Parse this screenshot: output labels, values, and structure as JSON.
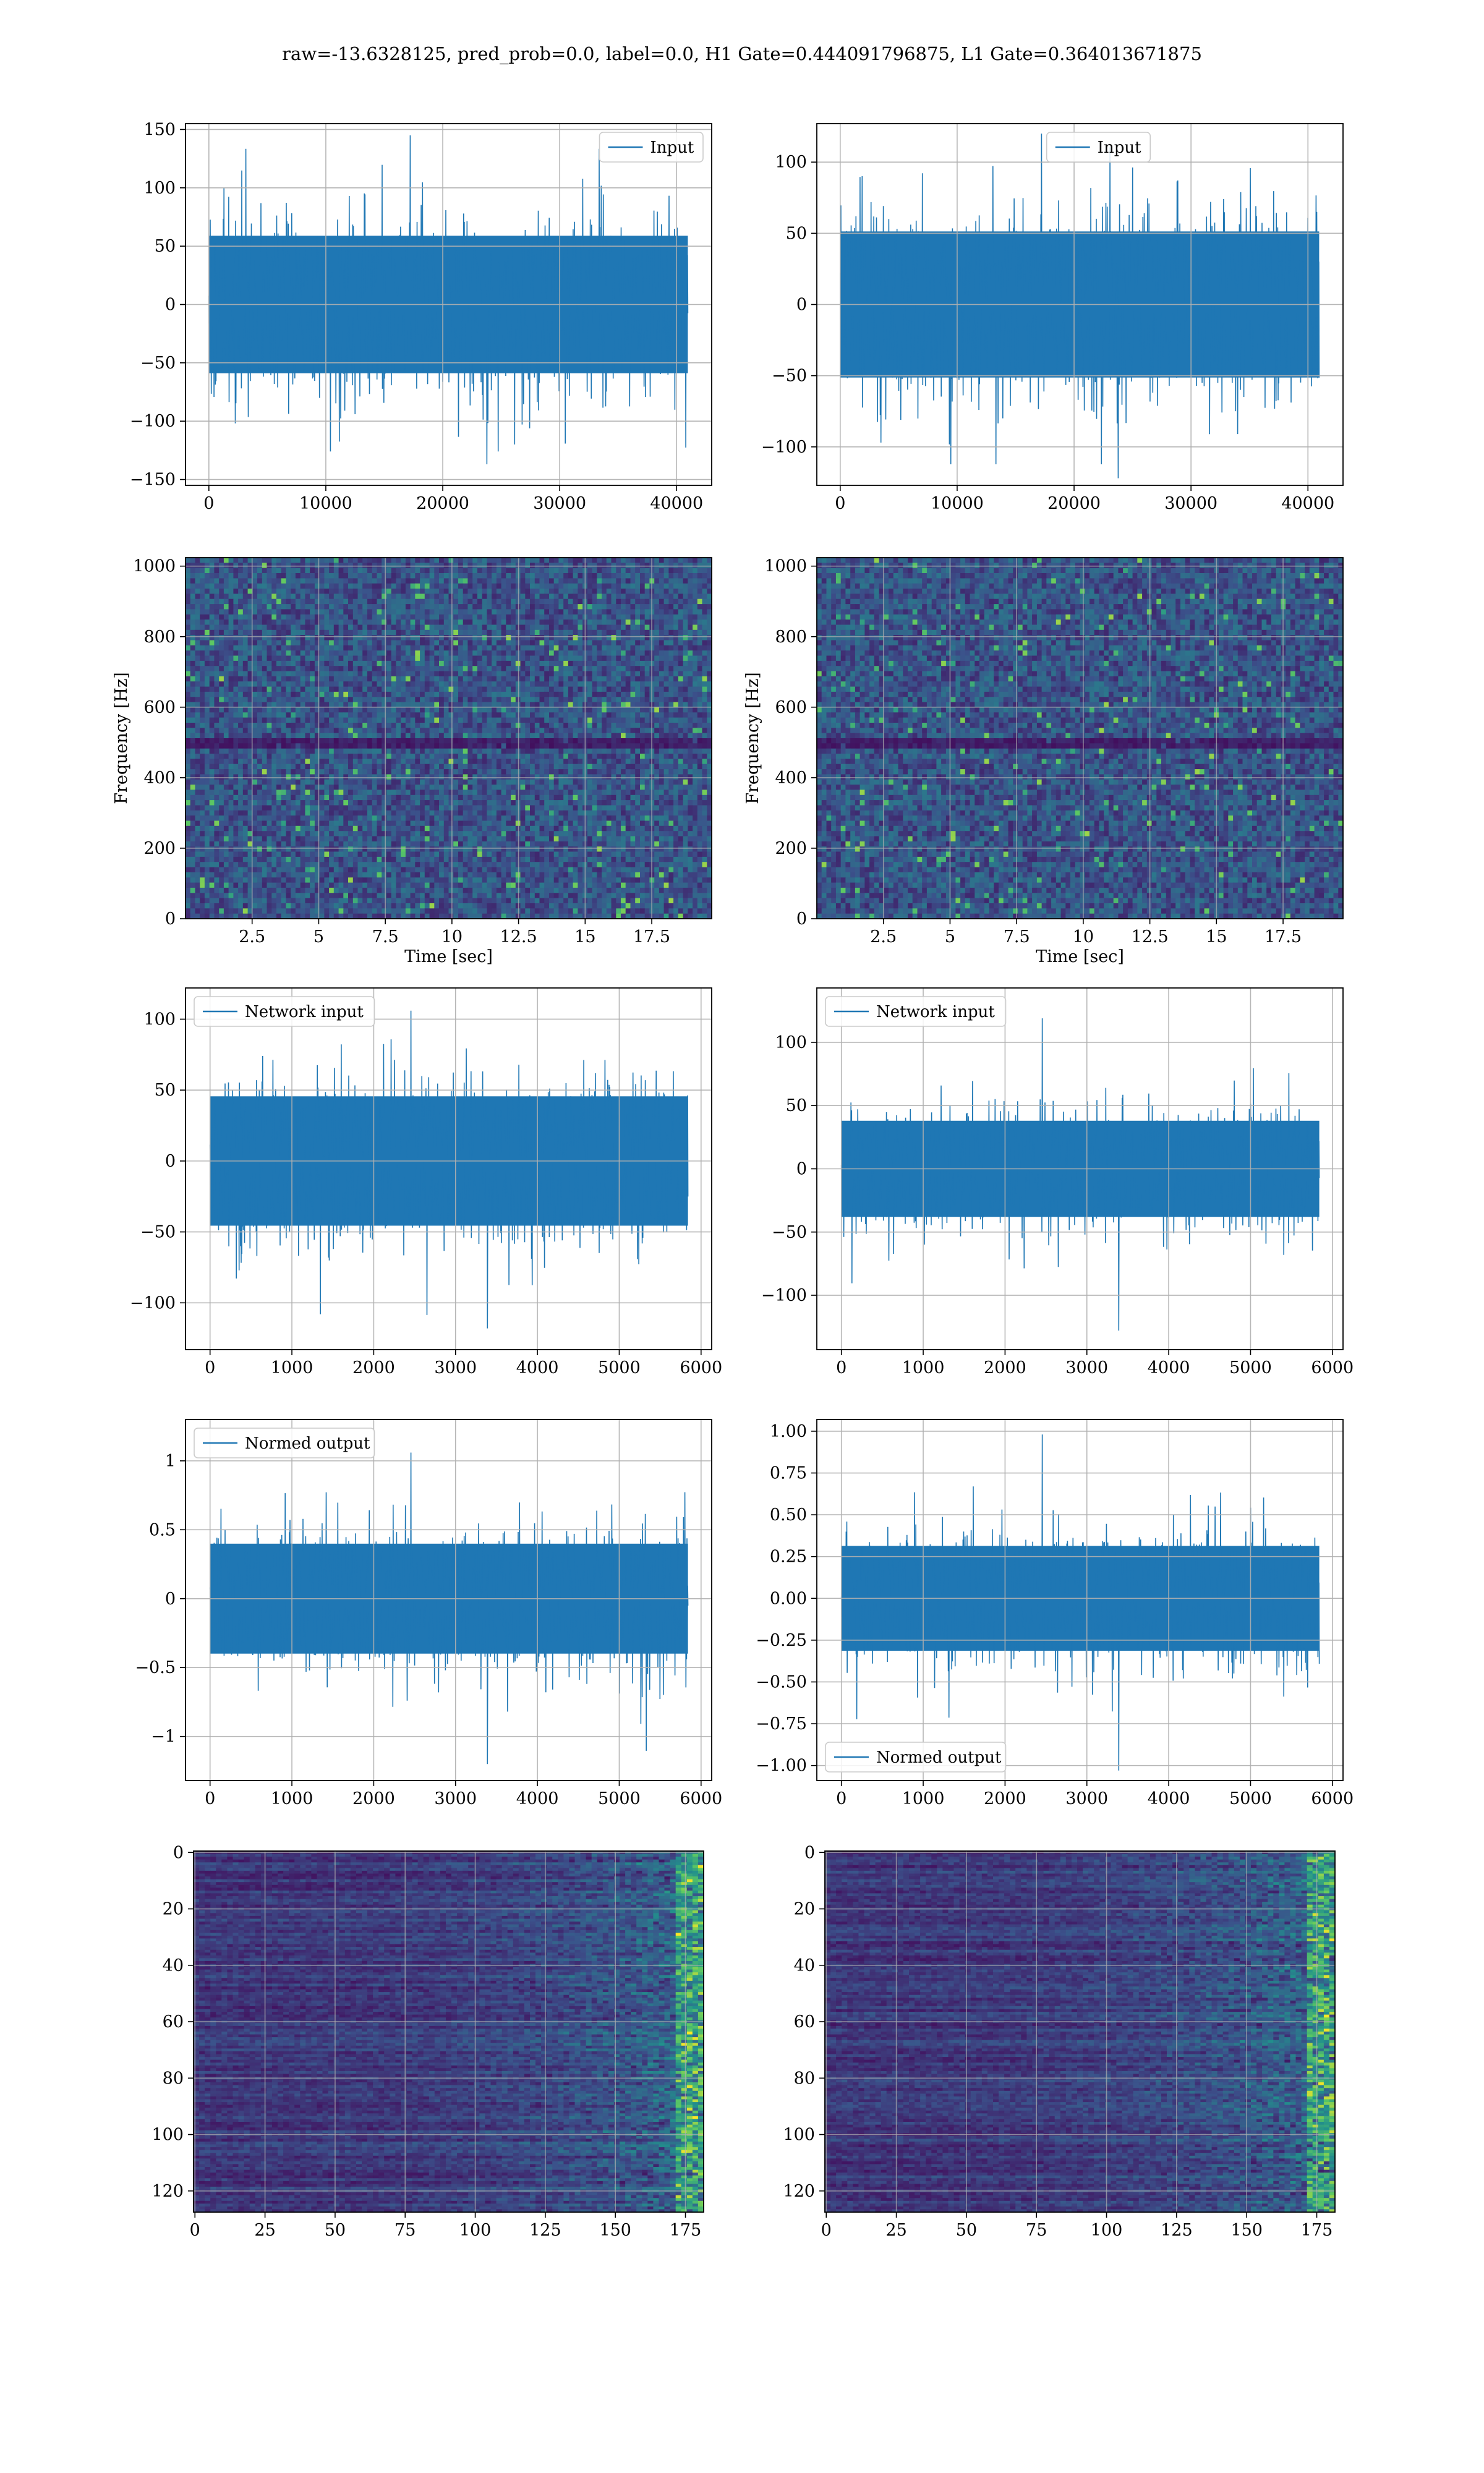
{
  "suptitle": "raw=-13.6328125, pred_prob=0.0, label=0.0, H1 Gate=0.444091796875, L1 Gate=0.364013671875",
  "colors": {
    "line": "#1f77b4",
    "grid": "#b0b0b0",
    "viridis_low": "#440154",
    "viridis_mid": "#21918c",
    "viridis_high": "#fde725"
  },
  "chart_data": [
    {
      "id": "input-h1",
      "type": "line",
      "panel_row": 1,
      "panel_col": 1,
      "series": [
        {
          "name": "Input",
          "noise_amplitude": 62,
          "peak": 145,
          "trough": -137
        }
      ],
      "xlim": [
        -2000,
        43000
      ],
      "ylim": [
        -155,
        155
      ],
      "xticks": [
        0,
        10000,
        20000,
        30000,
        40000
      ],
      "yticks": [
        -150,
        -100,
        -50,
        0,
        50,
        100,
        150
      ],
      "xlabel": "",
      "ylabel": "",
      "legend": "upper right",
      "grid": true,
      "n_samples": 40960
    },
    {
      "id": "input-l1",
      "type": "line",
      "panel_row": 1,
      "panel_col": 2,
      "series": [
        {
          "name": "Input",
          "noise_amplitude": 54,
          "peak": 120,
          "trough": -122
        }
      ],
      "xlim": [
        -2000,
        43000
      ],
      "ylim": [
        -127,
        127
      ],
      "xticks": [
        0,
        10000,
        20000,
        30000,
        40000
      ],
      "yticks": [
        -100,
        -50,
        0,
        50,
        100
      ],
      "xlabel": "",
      "ylabel": "",
      "legend": "upper center",
      "grid": true,
      "n_samples": 40960
    },
    {
      "id": "spectrogram-h1",
      "type": "heatmap",
      "panel_row": 2,
      "panel_col": 1,
      "xlim": [
        0,
        19.75
      ],
      "ylim": [
        0,
        1024
      ],
      "xticks": [
        2.5,
        5.0,
        7.5,
        10.0,
        12.5,
        15.0,
        17.5
      ],
      "yticks": [
        0,
        200,
        400,
        600,
        800,
        1000
      ],
      "xlabel": "Time [sec]",
      "ylabel": "Frequency [Hz]",
      "grid": true,
      "colormap": "viridis",
      "dark_band_hz": 500
    },
    {
      "id": "spectrogram-l1",
      "type": "heatmap",
      "panel_row": 2,
      "panel_col": 2,
      "xlim": [
        0,
        19.75
      ],
      "ylim": [
        0,
        1024
      ],
      "xticks": [
        2.5,
        5.0,
        7.5,
        10.0,
        12.5,
        15.0,
        17.5
      ],
      "yticks": [
        0,
        200,
        400,
        600,
        800,
        1000
      ],
      "xlabel": "Time [sec]",
      "ylabel": "Frequency [Hz]",
      "grid": true,
      "colormap": "viridis",
      "dark_band_hz": 500
    },
    {
      "id": "network-input-h1",
      "type": "line",
      "panel_row": 3,
      "panel_col": 1,
      "series": [
        {
          "name": "Network input",
          "noise_amplitude": 48,
          "peak": 106,
          "trough": -118
        }
      ],
      "xlim": [
        -300,
        6130
      ],
      "ylim": [
        -133,
        122
      ],
      "xticks": [
        0,
        1000,
        2000,
        3000,
        4000,
        5000,
        6000
      ],
      "yticks": [
        -100,
        -50,
        0,
        50,
        100
      ],
      "xlabel": "",
      "ylabel": "",
      "legend": "upper left",
      "grid": true,
      "n_samples": 5840
    },
    {
      "id": "network-input-l1",
      "type": "line",
      "panel_row": 3,
      "panel_col": 2,
      "series": [
        {
          "name": "Network input",
          "noise_amplitude": 40,
          "peak": 119,
          "trough": -128
        }
      ],
      "xlim": [
        -300,
        6130
      ],
      "ylim": [
        -143,
        143
      ],
      "xticks": [
        0,
        1000,
        2000,
        3000,
        4000,
        5000,
        6000
      ],
      "yticks": [
        -100,
        -50,
        0,
        50,
        100
      ],
      "xlabel": "",
      "ylabel": "",
      "legend": "upper left",
      "grid": true,
      "n_samples": 5840
    },
    {
      "id": "normed-output-h1",
      "type": "line",
      "panel_row": 4,
      "panel_col": 1,
      "series": [
        {
          "name": "Normed output",
          "noise_amplitude": 0.42,
          "peak": 1.06,
          "trough": -1.2
        }
      ],
      "xlim": [
        -300,
        6130
      ],
      "ylim": [
        -1.32,
        1.3
      ],
      "xticks": [
        0,
        1000,
        2000,
        3000,
        4000,
        5000,
        6000
      ],
      "yticks": [
        -1.0,
        -0.5,
        0.0,
        0.5,
        1.0
      ],
      "xlabel": "",
      "ylabel": "",
      "legend": "upper left",
      "grid": true,
      "n_samples": 5840
    },
    {
      "id": "normed-output-l1",
      "type": "line",
      "panel_row": 4,
      "panel_col": 2,
      "series": [
        {
          "name": "Normed output",
          "noise_amplitude": 0.33,
          "peak": 0.98,
          "trough": -1.03
        }
      ],
      "xlim": [
        -300,
        6130
      ],
      "ylim": [
        -1.09,
        1.07
      ],
      "xticks": [
        0,
        1000,
        2000,
        3000,
        4000,
        5000,
        6000
      ],
      "yticks": [
        -1.0,
        -0.75,
        -0.5,
        -0.25,
        0.0,
        0.25,
        0.5,
        0.75,
        1.0
      ],
      "ytick_labels": [
        "−1.00",
        "−0.75",
        "−0.50",
        "−0.25",
        "0.00",
        "0.25",
        "0.50",
        "0.75",
        "1.00"
      ],
      "xlabel": "",
      "ylabel": "",
      "legend": "lower left",
      "grid": true,
      "n_samples": 5840
    },
    {
      "id": "feature-map-h1",
      "type": "heatmap",
      "panel_row": 5,
      "panel_col": 1,
      "xlim": [
        -0.5,
        181.5
      ],
      "ylim": [
        127.5,
        -0.5
      ],
      "xticks": [
        0,
        25,
        50,
        75,
        100,
        125,
        150,
        175
      ],
      "yticks": [
        0,
        20,
        40,
        60,
        80,
        100,
        120
      ],
      "xlabel": "",
      "ylabel": "",
      "grid": true,
      "colormap": "viridis",
      "n_rows": 128,
      "n_cols": 182
    },
    {
      "id": "feature-map-l1",
      "type": "heatmap",
      "panel_row": 5,
      "panel_col": 2,
      "xlim": [
        -0.5,
        181.5
      ],
      "ylim": [
        127.5,
        -0.5
      ],
      "xticks": [
        0,
        25,
        50,
        75,
        100,
        125,
        150,
        175
      ],
      "yticks": [
        0,
        20,
        40,
        60,
        80,
        100,
        120
      ],
      "xlabel": "",
      "ylabel": "",
      "grid": true,
      "colormap": "viridis",
      "n_rows": 128,
      "n_cols": 182
    }
  ]
}
